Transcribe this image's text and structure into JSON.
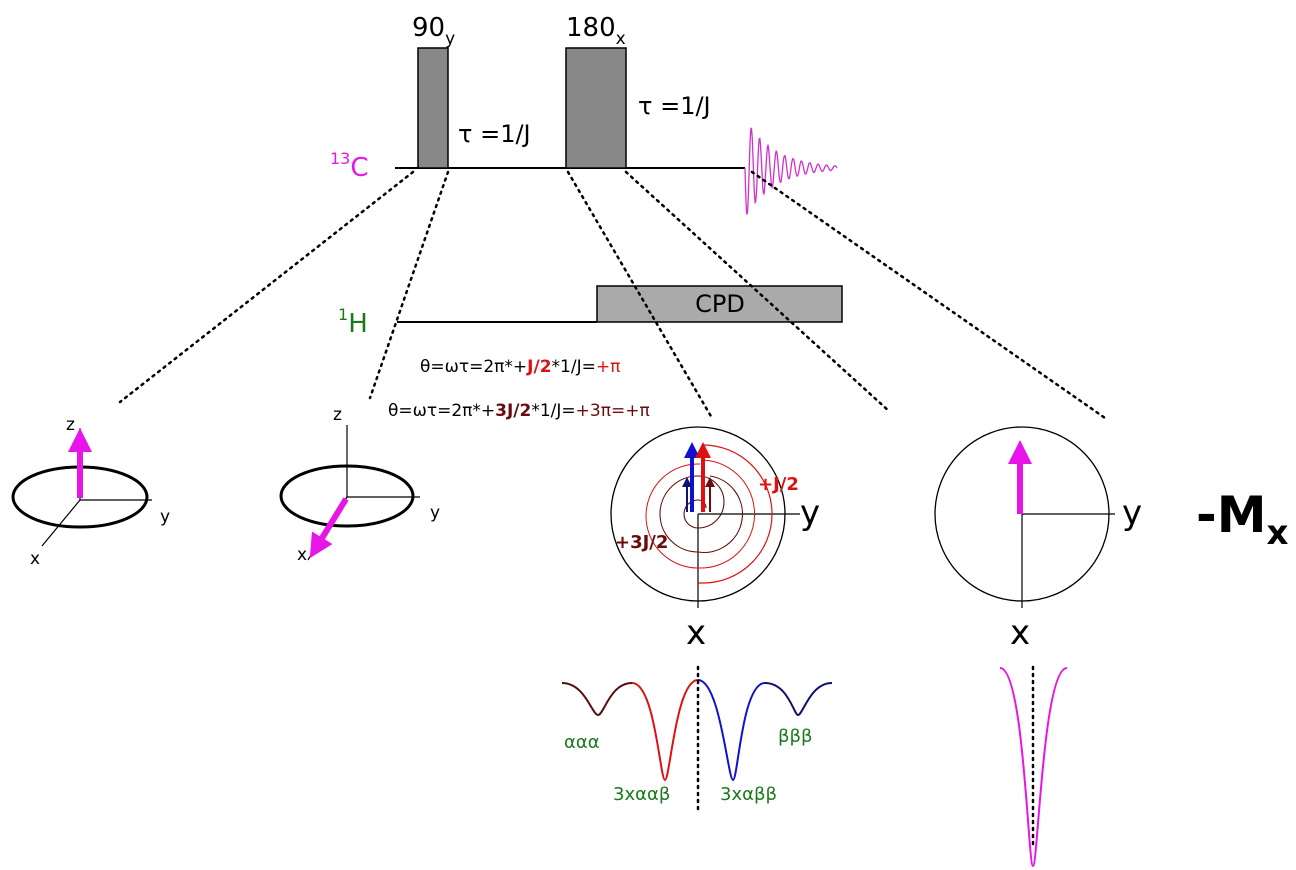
{
  "pulse_sequence": {
    "pulses": [
      {
        "angle": "90",
        "phase": "y"
      },
      {
        "angle": "180",
        "phase": "x"
      }
    ],
    "delays": [
      "τ =1/J",
      "τ =1/J"
    ],
    "channels": [
      {
        "isotope": "13",
        "nucleus": "C"
      },
      {
        "isotope": "1",
        "nucleus": "H"
      }
    ],
    "decoupling": "CPD"
  },
  "equations": [
    [
      "θ=ωτ=2π*+",
      "J/2",
      "*1/J=",
      "+π"
    ],
    [
      "θ=ωτ=2π*+",
      "3J/2",
      "*1/J=",
      "+3π=+π"
    ]
  ],
  "vector_panels": [
    {
      "axes": [
        "z",
        "y",
        "x"
      ]
    },
    {
      "axes": [
        "z",
        "y",
        "x"
      ]
    },
    {
      "axes": [
        "y",
        "x"
      ],
      "annotations": [
        "+J/2",
        "+3J/2"
      ]
    },
    {
      "axes": [
        "y",
        "x"
      ],
      "result": {
        "symbol": "-M",
        "subscript": "x"
      }
    }
  ],
  "spectra": [
    {
      "labels": [
        "ααα",
        "3xααβ",
        "3xαββ",
        "βββ"
      ]
    }
  ]
}
